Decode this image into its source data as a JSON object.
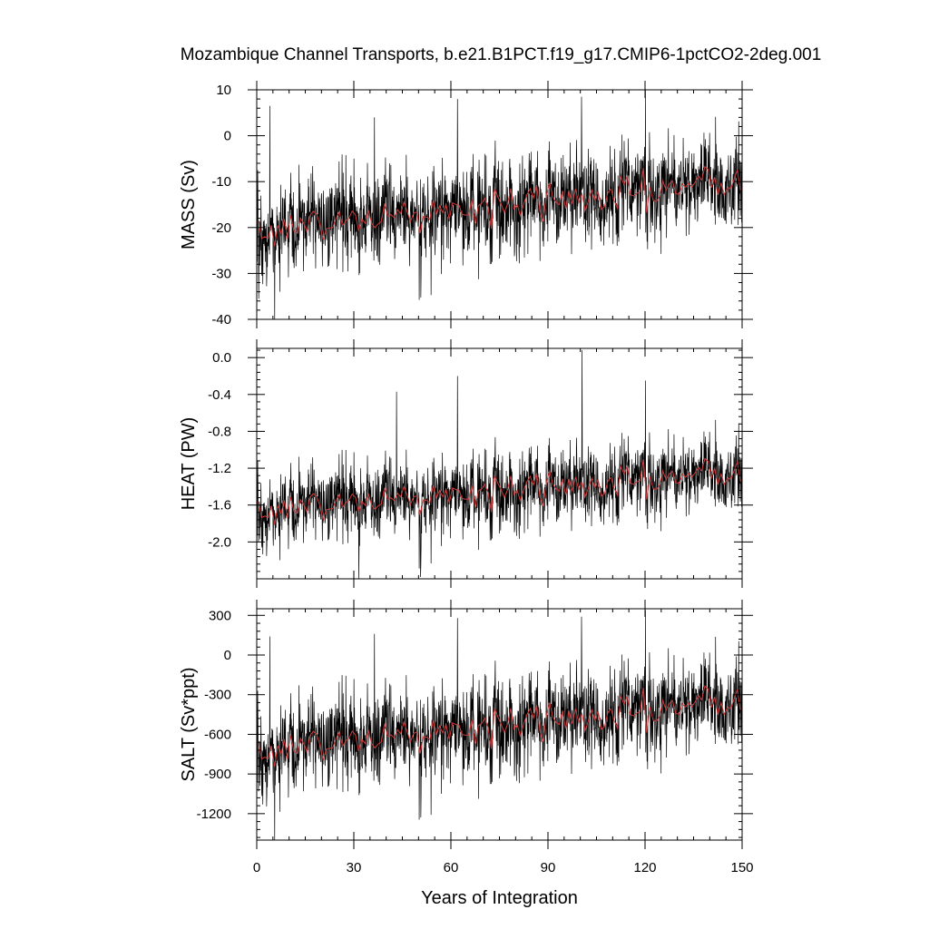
{
  "title": "Mozambique Channel Transports, b.e21.B1PCT.f19_g17.CMIP6-1pctCO2-2deg.001",
  "colors": {
    "monthly": "#000000",
    "annual_mean": "#d03a3a"
  },
  "chart_data": [
    {
      "type": "line",
      "name": "mass",
      "ylabel": "MASS (Sv)",
      "xlabel": "",
      "xlim": [
        0,
        150
      ],
      "ylim": [
        -40,
        10
      ],
      "yticks": [
        -40,
        -30,
        -20,
        -10,
        0,
        10
      ],
      "ytick_labels": [
        "-40",
        "-30",
        "-20",
        "-10",
        "0",
        "10"
      ],
      "xticks": [
        0,
        30,
        60,
        90,
        120,
        150
      ],
      "xtick_labels": [
        "",
        "",
        "",
        "",
        "",
        ""
      ],
      "trend": {
        "start": -20.5,
        "end": -10
      },
      "variability": {
        "monthly_sd": 5.5,
        "annual_sd": 2.0
      },
      "extremes": [
        {
          "x": 5.5,
          "y": -40
        },
        {
          "x": 0.6,
          "y": -35.5
        },
        {
          "x": 4.0,
          "y": 6.5
        },
        {
          "x": 36.3,
          "y": 4.0
        },
        {
          "x": 62.0,
          "y": 8.0
        },
        {
          "x": 100.3,
          "y": 8.5
        },
        {
          "x": 120.1,
          "y": 10.5
        }
      ]
    },
    {
      "type": "line",
      "name": "heat",
      "ylabel": "HEAT (PW)",
      "xlabel": "",
      "xlim": [
        0,
        150
      ],
      "ylim": [
        -2.4,
        0.1
      ],
      "yticks": [
        -2.0,
        -1.6,
        -1.2,
        -0.8,
        -0.4,
        0.0
      ],
      "ytick_labels": [
        "-2.0",
        "-1.6",
        "-1.2",
        "-0.8",
        "-0.4",
        "0.0"
      ],
      "xticks": [
        0,
        30,
        60,
        90,
        120,
        150
      ],
      "xtick_labels": [
        "",
        "",
        "",
        "",
        "",
        ""
      ],
      "trend": {
        "start": -1.65,
        "end": -1.25
      },
      "variability": {
        "monthly_sd": 0.22,
        "annual_sd": 0.09
      },
      "extremes": [
        {
          "x": 31.5,
          "y": -2.4
        },
        {
          "x": 50.6,
          "y": -2.38
        },
        {
          "x": 43.2,
          "y": -0.37
        },
        {
          "x": 62.0,
          "y": -0.2
        },
        {
          "x": 100.5,
          "y": 0.08
        },
        {
          "x": 120.1,
          "y": -0.25
        }
      ]
    },
    {
      "type": "line",
      "name": "salt",
      "ylabel": "SALT (Sv*ppt)",
      "xlabel": "Years of Integration",
      "xlim": [
        0,
        150
      ],
      "ylim": [
        -1400,
        350
      ],
      "yticks": [
        -1200,
        -900,
        -600,
        -300,
        0,
        300
      ],
      "ytick_labels": [
        "-1200",
        "-900",
        "-600",
        "-300",
        "0",
        "300"
      ],
      "xticks": [
        0,
        30,
        60,
        90,
        120,
        150
      ],
      "xtick_labels": [
        "0",
        "30",
        "60",
        "90",
        "120",
        "150"
      ],
      "trend": {
        "start": -720,
        "end": -350
      },
      "variability": {
        "monthly_sd": 190,
        "annual_sd": 70
      },
      "extremes": [
        {
          "x": 5.5,
          "y": -1400
        },
        {
          "x": 4.0,
          "y": 140
        },
        {
          "x": 36.3,
          "y": 160
        },
        {
          "x": 62.0,
          "y": 280
        },
        {
          "x": 100.3,
          "y": 290
        },
        {
          "x": 120.1,
          "y": 340
        }
      ]
    }
  ]
}
